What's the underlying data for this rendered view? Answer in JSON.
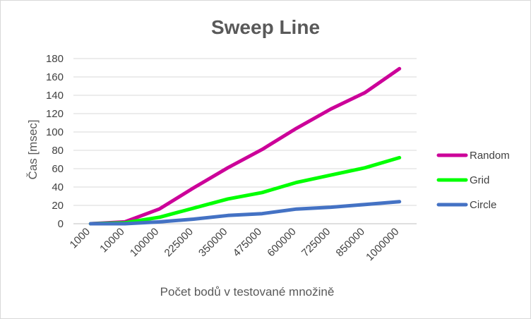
{
  "chart_data": {
    "type": "line",
    "title": "Sweep Line",
    "xlabel": "Počet bodů v testované množině",
    "ylabel": "Čas [msec]",
    "categories": [
      "1000",
      "10000",
      "100000",
      "225000",
      "350000",
      "475000",
      "600000",
      "725000",
      "850000",
      "1000000"
    ],
    "ylim": [
      0,
      180
    ],
    "yticks": [
      "0",
      "20",
      "40",
      "60",
      "80",
      "100",
      "120",
      "140",
      "160",
      "180"
    ],
    "grid": true,
    "legend_position": "right",
    "series": [
      {
        "name": "Random",
        "color": "#cc0099",
        "values": [
          0,
          2,
          16,
          39,
          61,
          81,
          104,
          125,
          143,
          169
        ]
      },
      {
        "name": "Grid",
        "color": "#00ff00",
        "values": [
          0,
          1,
          7,
          17,
          27,
          34,
          45,
          53,
          61,
          72
        ]
      },
      {
        "name": "Circle",
        "color": "#4472c4",
        "values": [
          0,
          0,
          2,
          5,
          9,
          11,
          16,
          18,
          21,
          24
        ]
      }
    ]
  }
}
